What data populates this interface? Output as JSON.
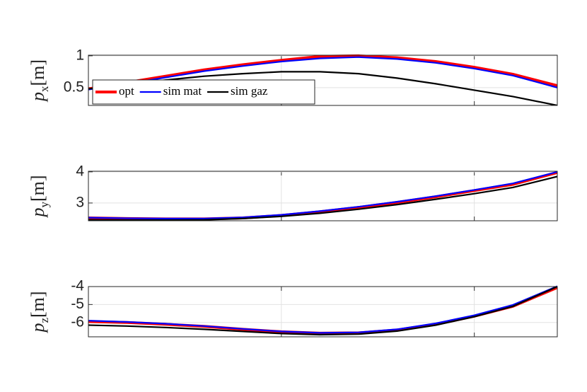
{
  "chart_data": [
    {
      "type": "line",
      "ylabel": [
        "p",
        "x",
        "[m]"
      ],
      "x": [
        0,
        0.2,
        0.4,
        0.6,
        0.8,
        1.0,
        1.2,
        1.4,
        1.6,
        1.8,
        2.0,
        2.2,
        2.43
      ],
      "xlim": [
        0,
        2.43
      ],
      "xticks": [
        1,
        2
      ],
      "ylim": [
        0.22,
        1.01
      ],
      "yticks": [
        0.5,
        1
      ],
      "grid": true,
      "legend": "southwest",
      "series": [
        {
          "name": "opt",
          "color": "#ff0000",
          "linewidth": 4,
          "values": [
            0.48,
            0.58,
            0.68,
            0.78,
            0.86,
            0.93,
            0.99,
            1.0,
            0.97,
            0.91,
            0.82,
            0.71,
            0.53
          ]
        },
        {
          "name": "sim mat",
          "color": "#0000ff",
          "linewidth": 2.2,
          "values": [
            0.47,
            0.56,
            0.66,
            0.76,
            0.84,
            0.91,
            0.96,
            0.98,
            0.95,
            0.89,
            0.8,
            0.69,
            0.5
          ]
        },
        {
          "name": "sim gaz",
          "color": "#000000",
          "linewidth": 2.2,
          "values": [
            0.48,
            0.55,
            0.62,
            0.68,
            0.72,
            0.75,
            0.75,
            0.72,
            0.65,
            0.56,
            0.46,
            0.36,
            0.22
          ]
        }
      ]
    },
    {
      "type": "line",
      "ylabel": [
        "p",
        "y",
        "[m]"
      ],
      "x": [
        0,
        0.2,
        0.4,
        0.6,
        0.8,
        1.0,
        1.2,
        1.4,
        1.6,
        1.8,
        2.0,
        2.2,
        2.43
      ],
      "xlim": [
        0,
        2.43
      ],
      "xticks": [
        1,
        2
      ],
      "ylim": [
        2.43,
        4.02
      ],
      "yticks": [
        3,
        4
      ],
      "grid": true,
      "series": [
        {
          "color": "#ff0000",
          "linewidth": 4,
          "values": [
            2.52,
            2.5,
            2.49,
            2.49,
            2.52,
            2.6,
            2.72,
            2.86,
            3.02,
            3.2,
            3.4,
            3.6,
            3.98
          ]
        },
        {
          "color": "#0000ff",
          "linewidth": 2.2,
          "values": [
            2.53,
            2.51,
            2.5,
            2.5,
            2.54,
            2.62,
            2.74,
            2.88,
            3.04,
            3.22,
            3.42,
            3.63,
            4.0
          ]
        },
        {
          "color": "#000000",
          "linewidth": 2.2,
          "values": [
            2.46,
            2.45,
            2.45,
            2.46,
            2.5,
            2.57,
            2.67,
            2.8,
            2.95,
            3.12,
            3.3,
            3.5,
            3.85
          ]
        }
      ]
    },
    {
      "type": "line",
      "ylabel": [
        "p",
        "z",
        "[m]"
      ],
      "x": [
        0,
        0.2,
        0.4,
        0.6,
        0.8,
        1.0,
        1.2,
        1.4,
        1.6,
        1.8,
        2.0,
        2.2,
        2.43
      ],
      "xlim": [
        0,
        2.43
      ],
      "xticks": [
        1,
        2
      ],
      "ylim": [
        -6.8,
        -4
      ],
      "yticks": [
        -6,
        -5,
        -4
      ],
      "grid": true,
      "series": [
        {
          "color": "#ff0000",
          "linewidth": 4,
          "values": [
            -5.95,
            -6.0,
            -6.1,
            -6.22,
            -6.38,
            -6.52,
            -6.6,
            -6.58,
            -6.42,
            -6.1,
            -5.65,
            -5.1,
            -4.05
          ]
        },
        {
          "color": "#0000ff",
          "linewidth": 2.2,
          "values": [
            -5.9,
            -5.97,
            -6.07,
            -6.2,
            -6.36,
            -6.5,
            -6.58,
            -6.55,
            -6.38,
            -6.05,
            -5.6,
            -5.02,
            -3.98
          ]
        },
        {
          "color": "#000000",
          "linewidth": 2.2,
          "values": [
            -6.15,
            -6.2,
            -6.28,
            -6.38,
            -6.5,
            -6.62,
            -6.68,
            -6.65,
            -6.48,
            -6.15,
            -5.68,
            -5.1,
            -4.0
          ]
        }
      ]
    }
  ]
}
